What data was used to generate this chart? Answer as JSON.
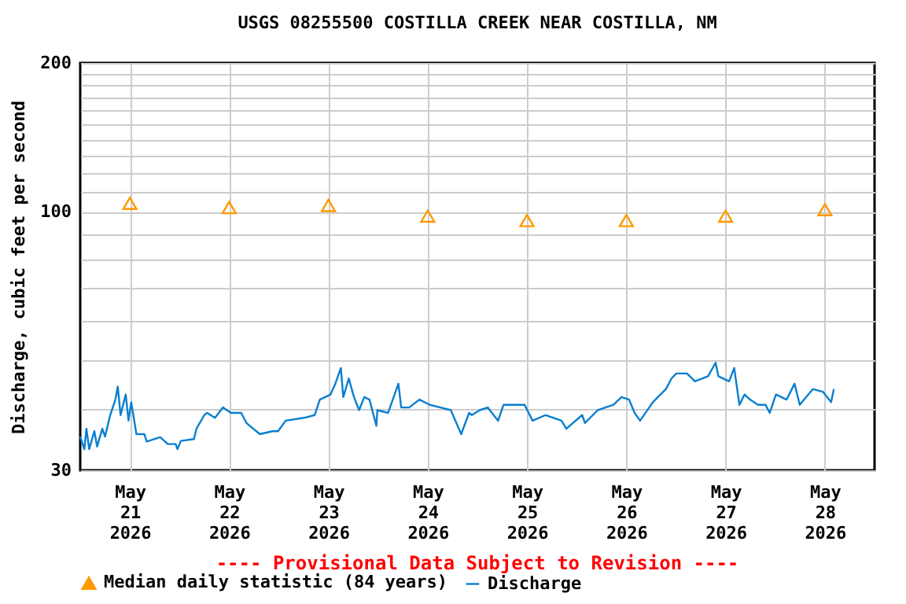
{
  "chart_data": {
    "type": "line",
    "title": "USGS 08255500 COSTILLA CREEK NEAR COSTILLA, NM",
    "ylabel": "Discharge, cubic feet per second",
    "annotations": [
      "---- Provisional Data Subject to Revision ----"
    ],
    "log": true,
    "grid": true,
    "legend": "bottom",
    "xlim": [
      "2026-05-20T12:00",
      "2026-05-28T12:00"
    ],
    "xticks": [
      {
        "value": "2026-05-21",
        "label": "May\n21\n2026"
      },
      {
        "value": "2026-05-22",
        "label": "May\n22\n2026"
      },
      {
        "value": "2026-05-23",
        "label": "May\n23\n2026"
      },
      {
        "value": "2026-05-24",
        "label": "May\n24\n2026"
      },
      {
        "value": "2026-05-25",
        "label": "May\n25\n2026"
      },
      {
        "value": "2026-05-26",
        "label": "May\n26\n2026"
      },
      {
        "value": "2026-05-27",
        "label": "May\n27\n2026"
      },
      {
        "value": "2026-05-28",
        "label": "May\n28\n2026"
      }
    ],
    "ylim": [
      30,
      200
    ],
    "yticks": [
      30,
      {
        "value": 40,
        "label": null
      },
      {
        "value": 50,
        "label": null
      },
      {
        "value": 60,
        "label": null
      },
      {
        "value": 70,
        "label": null
      },
      {
        "value": 80,
        "label": null
      },
      {
        "value": 90,
        "label": null
      },
      100,
      {
        "value": 110,
        "label": null
      },
      {
        "value": 120,
        "label": null
      },
      {
        "value": 130,
        "label": null
      },
      {
        "value": 140,
        "label": null
      },
      {
        "value": 150,
        "label": null
      },
      {
        "value": 160,
        "label": null
      },
      {
        "value": 170,
        "label": null
      },
      {
        "value": 180,
        "label": null
      },
      {
        "value": 190,
        "label": null
      },
      200
    ],
    "series": [
      {
        "name": "Median daily statistic (84 years)",
        "type": "scatter",
        "marker": "triangle",
        "color": "#ff9900",
        "x": [
          "2026-05-21",
          "2026-05-22",
          "2026-05-23",
          "2026-05-24",
          "2026-05-25",
          "2026-05-26",
          "2026-05-27",
          "2026-05-28"
        ],
        "values": [
          104,
          102,
          103,
          98,
          96,
          96,
          98,
          101
        ]
      },
      {
        "name": "Discharge",
        "type": "line",
        "color": "#0a7fd0",
        "x": [
          "2026-05-20T12:00",
          "2026-05-20T13:00",
          "2026-05-20T13:30",
          "2026-05-20T14:10",
          "2026-05-20T15:25",
          "2026-05-20T16:05",
          "2026-05-20T17:20",
          "2026-05-20T18:00",
          "2026-05-20T19:15",
          "2026-05-20T20:30",
          "2026-05-20T21:05",
          "2026-05-20T21:45",
          "2026-05-20T23:00",
          "2026-05-20T23:40",
          "2026-05-21T00:20",
          "2026-05-21T01:35",
          "2026-05-21T03:30",
          "2026-05-21T04:05",
          "2026-05-21T07:20",
          "2026-05-21T09:10",
          "2026-05-21T11:05",
          "2026-05-21T11:30",
          "2026-05-21T12:20",
          "2026-05-21T15:30",
          "2026-05-21T16:05",
          "2026-05-21T18:00",
          "2026-05-21T18:40",
          "2026-05-21T20:35",
          "2026-05-21T22:30",
          "2026-05-22T00:25",
          "2026-05-22T02:55",
          "2026-05-22T04:10",
          "2026-05-22T07:25",
          "2026-05-22T10:30",
          "2026-05-22T11:50",
          "2026-05-22T13:40",
          "2026-05-22T18:05",
          "2026-05-22T20:40",
          "2026-05-22T21:55",
          "2026-05-23T00:30",
          "2026-05-23T01:40",
          "2026-05-23T03:00",
          "2026-05-23T03:35",
          "2026-05-23T04:55",
          "2026-05-23T06:10",
          "2026-05-23T07:25",
          "2026-05-23T08:40",
          "2026-05-23T09:55",
          "2026-05-23T11:35",
          "2026-05-23T11:50",
          "2026-05-23T14:25",
          "2026-05-23T16:55",
          "2026-05-23T17:35",
          "2026-05-23T19:30",
          "2026-05-23T22:00",
          "2026-05-24T00:30",
          "2026-05-24T03:05",
          "2026-05-24T05:35",
          "2026-05-24T08:05",
          "2026-05-24T10:00",
          "2026-05-24T10:40",
          "2026-05-24T12:35",
          "2026-05-24T14:30",
          "2026-05-24T17:00",
          "2026-05-24T18:20",
          "2026-05-24T23:25",
          "2026-05-25T01:20",
          "2026-05-25T04:30",
          "2026-05-25T08:20",
          "2026-05-25T09:30",
          "2026-05-25T13:20",
          "2026-05-25T14:00",
          "2026-05-25T17:05",
          "2026-05-25T20:55",
          "2026-05-25T22:50",
          "2026-05-26T00:40",
          "2026-05-26T02:00",
          "2026-05-26T03:20",
          "2026-05-26T06:25",
          "2026-05-26T09:35",
          "2026-05-26T10:55",
          "2026-05-26T12:05",
          "2026-05-26T14:40",
          "2026-05-26T16:35",
          "2026-05-26T19:45",
          "2026-05-26T21:35",
          "2026-05-26T22:15",
          "2026-05-27T00:50",
          "2026-05-27T02:05",
          "2026-05-27T03:20",
          "2026-05-27T04:35",
          "2026-05-27T05:55",
          "2026-05-27T07:50",
          "2026-05-27T09:40",
          "2026-05-27T10:40",
          "2026-05-27T12:10",
          "2026-05-27T14:45",
          "2026-05-27T16:40",
          "2026-05-27T17:55",
          "2026-05-27T21:05",
          "2026-05-27T23:35",
          "2026-05-28T01:30",
          "2026-05-28T02:10"
        ],
        "values": [
          35.1,
          33.1,
          36.4,
          33.1,
          36.0,
          33.5,
          36.4,
          35.1,
          38.8,
          41.7,
          44.3,
          38.8,
          42.7,
          37.8,
          41.2,
          35.5,
          35.5,
          34.3,
          35.0,
          33.9,
          33.9,
          33.1,
          34.4,
          34.7,
          36.4,
          38.8,
          39.2,
          38.3,
          40.2,
          39.2,
          39.2,
          37.4,
          35.5,
          36.0,
          36.0,
          37.8,
          38.3,
          38.8,
          41.7,
          42.7,
          44.9,
          48.3,
          42.2,
          46.0,
          42.2,
          39.7,
          42.2,
          41.7,
          36.9,
          39.7,
          39.2,
          44.9,
          40.2,
          40.2,
          41.7,
          40.7,
          40.2,
          39.7,
          35.5,
          39.2,
          38.8,
          39.7,
          40.2,
          37.8,
          40.7,
          40.7,
          37.8,
          38.8,
          37.8,
          36.4,
          38.8,
          37.4,
          39.7,
          40.7,
          42.2,
          41.7,
          39.2,
          37.8,
          41.2,
          43.8,
          46.0,
          47.1,
          47.1,
          45.4,
          46.5,
          49.5,
          46.5,
          45.4,
          48.3,
          40.7,
          42.7,
          41.7,
          40.7,
          40.7,
          39.2,
          42.7,
          41.7,
          44.9,
          40.7,
          43.8,
          43.2,
          41.2,
          43.8
        ]
      }
    ]
  }
}
